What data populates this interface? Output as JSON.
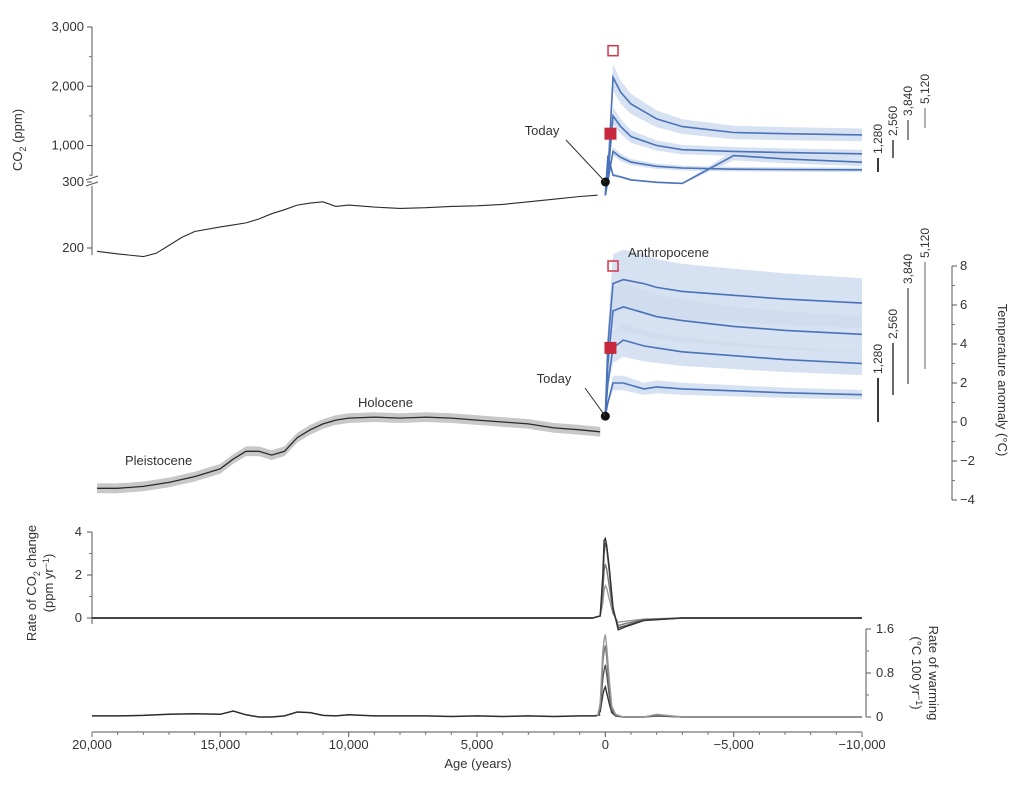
{
  "colors": {
    "observed": "#2b2b2b",
    "observed_band": "#c8c8c8",
    "model_line": "#4a72b8",
    "model_band": "#cfdcef",
    "marker_filled": "#c8283c",
    "marker_open": "#d2354a",
    "scenario_bars": [
      "#3a3a3a",
      "#6a6a6a",
      "#8c8c8c",
      "#b0b0b0"
    ],
    "rate_lines": [
      "#333333",
      "#555555",
      "#777777",
      "#999999"
    ]
  },
  "x_axis": {
    "label": "Age (years)",
    "ticks": [
      20000,
      15000,
      10000,
      5000,
      0,
      -5000,
      -10000
    ],
    "tick_labels": [
      "20,000",
      "15,000",
      "10,000",
      "5,000",
      "0",
      "−5,000",
      "−10,000"
    ],
    "range": [
      20000,
      -10000
    ]
  },
  "chart_data": [
    {
      "type": "line",
      "panel": "co2",
      "ylabel_parts": [
        "CO",
        "2",
        " (ppm)"
      ],
      "y_ticks_upper": [
        1000,
        2000,
        3000
      ],
      "y_tick_labels_upper": [
        "1,000",
        "2,000",
        "3,000"
      ],
      "y_ticks_lower": [
        200,
        300
      ],
      "y_tick_labels_lower": [
        "200",
        "300"
      ],
      "scale": "broken axis (300 ppm break)",
      "scenario_labels": [
        "1,280",
        "2,560",
        "3,840",
        "5,120"
      ],
      "annotations": [
        "Today"
      ],
      "observed": {
        "x": [
          19800,
          19000,
          18000,
          17500,
          17000,
          16500,
          16000,
          15000,
          14500,
          14000,
          13500,
          13000,
          12500,
          12000,
          11500,
          11000,
          10500,
          10000,
          9000,
          8000,
          7000,
          6000,
          5000,
          4000,
          3000,
          2000,
          1000,
          300
        ],
        "y": [
          195,
          191,
          187,
          192,
          204,
          216,
          225,
          232,
          235,
          238,
          244,
          252,
          258,
          265,
          268,
          270,
          263,
          265,
          262,
          260,
          261,
          263,
          264,
          266,
          270,
          274,
          278,
          280
        ]
      },
      "scenarios": [
        {
          "name": "1,280",
          "x": [
            0,
            -100,
            -300,
            -600,
            -1000,
            -2000,
            -3000,
            -5000,
            -7000,
            -10000
          ],
          "y": [
            280,
            340,
            500,
            470,
            420,
            380,
            360,
            340,
            335,
            330
          ]
        },
        {
          "name": "2,560",
          "x": [
            0,
            -100,
            -300,
            -600,
            -1000,
            -2000,
            -3000,
            -5000,
            -7000,
            -10000
          ],
          "y": [
            280,
            400,
            900,
            800,
            720,
            650,
            620,
            600,
            595,
            590
          ]
        },
        {
          "name": "3,840",
          "x": [
            0,
            -100,
            -300,
            -600,
            -1000,
            -2000,
            -3000,
            -5000,
            -7000,
            -10000
          ],
          "y": [
            280,
            450,
            1500,
            1320,
            1150,
            1000,
            930,
            900,
            880,
            860
          ]
        },
        {
          "name": "5,120",
          "x": [
            0,
            -100,
            -300,
            -600,
            -1000,
            -2000,
            -3000,
            -5000,
            -7000,
            -10000
          ],
          "y": [
            280,
            500,
            2150,
            1900,
            1700,
            1450,
            1320,
            1220,
            1200,
            1180
          ]
        }
      ],
      "markers": [
        {
          "label": "Today",
          "x": 0,
          "y": 300,
          "style": "filled-circle"
        },
        {
          "x": -200,
          "y": 1200,
          "style": "filled-square"
        },
        {
          "x": -300,
          "y": 2600,
          "style": "open-square"
        }
      ]
    },
    {
      "type": "line",
      "panel": "temperature",
      "ylabel": "Temperature anomaly (°C)",
      "y_ticks": [
        -4,
        -2,
        0,
        2,
        4,
        6,
        8
      ],
      "y_tick_labels": [
        "−4",
        "−2",
        "0",
        "2",
        "4",
        "6",
        "8"
      ],
      "ylim": [
        -4,
        8
      ],
      "scenario_labels": [
        "1,280",
        "2,560",
        "3,840",
        "5,120"
      ],
      "annotations": [
        "Pleistocene",
        "Holocene",
        "Today",
        "Anthropocene"
      ],
      "observed": {
        "x": [
          19800,
          19000,
          18000,
          17000,
          16000,
          15500,
          15000,
          14500,
          14000,
          13500,
          13000,
          12500,
          12000,
          11500,
          11000,
          10500,
          10000,
          9000,
          8000,
          7000,
          6000,
          5000,
          4000,
          3000,
          2000,
          1000,
          200
        ],
        "y": [
          -3.4,
          -3.4,
          -3.3,
          -3.1,
          -2.8,
          -2.6,
          -2.4,
          -1.9,
          -1.5,
          -1.5,
          -1.7,
          -1.5,
          -0.8,
          -0.4,
          -0.1,
          0.1,
          0.2,
          0.25,
          0.2,
          0.25,
          0.2,
          0.1,
          0.0,
          -0.1,
          -0.3,
          -0.4,
          -0.5
        ]
      },
      "scenarios": [
        {
          "name": "1,280",
          "x": [
            0,
            -100,
            -300,
            -700,
            -1500,
            -2000,
            -3000,
            -5000,
            -7000,
            -10000
          ],
          "y": [
            0.3,
            1.0,
            2.0,
            2.0,
            1.7,
            1.8,
            1.7,
            1.6,
            1.5,
            1.4
          ]
        },
        {
          "name": "2,560",
          "x": [
            0,
            -100,
            -300,
            -700,
            -1500,
            -2000,
            -3000,
            -5000,
            -7000,
            -10000
          ],
          "y": [
            0.3,
            2.0,
            3.8,
            4.2,
            3.9,
            3.8,
            3.6,
            3.4,
            3.2,
            3.0
          ]
        },
        {
          "name": "3,840",
          "x": [
            0,
            -100,
            -300,
            -700,
            -1500,
            -2000,
            -3000,
            -5000,
            -7000,
            -10000
          ],
          "y": [
            0.3,
            3.0,
            5.7,
            5.9,
            5.6,
            5.4,
            5.2,
            4.9,
            4.7,
            4.5
          ]
        },
        {
          "name": "5,120",
          "x": [
            0,
            -100,
            -300,
            -700,
            -1500,
            -2000,
            -3000,
            -5000,
            -7000,
            -10000
          ],
          "y": [
            0.3,
            4.0,
            7.1,
            7.3,
            7.1,
            6.9,
            6.7,
            6.5,
            6.3,
            6.1
          ]
        }
      ],
      "markers": [
        {
          "label": "Today",
          "x": 0,
          "y": 0.3,
          "style": "filled-circle"
        },
        {
          "x": -200,
          "y": 3.8,
          "style": "filled-square"
        },
        {
          "x": -300,
          "y": 8.0,
          "style": "open-square"
        }
      ]
    },
    {
      "type": "line",
      "panel": "co2_rate",
      "ylabel_parts": [
        "Rate of CO",
        "2",
        " change"
      ],
      "ylabel_line2_parts": [
        "(ppm yr",
        "−1",
        ")"
      ],
      "y_ticks": [
        0,
        2,
        4
      ],
      "y_tick_labels": [
        "0",
        "2",
        "4"
      ],
      "ylim": [
        -0.3,
        4
      ],
      "series": [
        {
          "name": "1,280",
          "x": [
            20000,
            500,
            200,
            100,
            50,
            0,
            -50,
            -150,
            -300,
            -500,
            -800,
            -1500,
            -3000,
            -10000
          ],
          "y": [
            0,
            0,
            0.1,
            0.7,
            1.3,
            1.5,
            1.4,
            0.9,
            0.2,
            -0.2,
            -0.15,
            -0.05,
            0,
            0
          ]
        },
        {
          "name": "2,560",
          "x": [
            20000,
            500,
            200,
            100,
            50,
            0,
            -50,
            -150,
            -300,
            -500,
            -800,
            -1500,
            -3000,
            -10000
          ],
          "y": [
            0,
            0,
            0.1,
            1.2,
            2.2,
            2.5,
            2.3,
            1.5,
            0.3,
            -0.35,
            -0.25,
            -0.08,
            0,
            0
          ]
        },
        {
          "name": "3,840",
          "x": [
            20000,
            500,
            200,
            100,
            50,
            0,
            -50,
            -150,
            -300,
            -500,
            -800,
            -1500,
            -3000,
            -10000
          ],
          "y": [
            0,
            0,
            0.1,
            1.6,
            3.0,
            3.5,
            3.3,
            2.2,
            0.4,
            -0.45,
            -0.35,
            -0.1,
            0,
            0
          ]
        },
        {
          "name": "5,120",
          "x": [
            20000,
            500,
            200,
            100,
            50,
            0,
            -50,
            -150,
            -300,
            -500,
            -800,
            -1500,
            -3000,
            -10000
          ],
          "y": [
            0,
            0,
            0.1,
            2.0,
            3.6,
            3.7,
            3.4,
            2.4,
            0.5,
            -0.55,
            -0.4,
            -0.12,
            0,
            0
          ]
        }
      ]
    },
    {
      "type": "line",
      "panel": "warming_rate",
      "ylabel": "Rate of warming",
      "ylabel_line2_parts": [
        "(°C 100 yr",
        "−1",
        ")"
      ],
      "y_ticks": [
        0,
        0.8,
        1.6
      ],
      "y_tick_labels": [
        "0",
        "0.8",
        "1.6"
      ],
      "ylim": [
        0,
        1.6
      ],
      "observed": {
        "x": [
          20000,
          19000,
          18000,
          17000,
          16000,
          15000,
          14500,
          14000,
          13500,
          13000,
          12500,
          12000,
          11500,
          11000,
          10500,
          10000,
          9000,
          8000,
          7000,
          6000,
          5000,
          4000,
          3000,
          2000,
          1000,
          400,
          200
        ],
        "y": [
          0.02,
          0.02,
          0.03,
          0.05,
          0.06,
          0.05,
          0.11,
          0.04,
          0.0,
          0.0,
          0.02,
          0.09,
          0.08,
          0.03,
          0.02,
          0.04,
          0.02,
          0.02,
          0.02,
          0.01,
          0.02,
          0.01,
          0.02,
          0.01,
          0.02,
          0.02,
          0.04
        ]
      },
      "series": [
        {
          "name": "1,280",
          "x": [
            300,
            200,
            100,
            50,
            0,
            -50,
            -150,
            -250,
            -400,
            -700,
            -1500,
            -2000,
            -3000,
            -10000
          ],
          "y": [
            0.02,
            0.1,
            0.4,
            0.5,
            0.55,
            0.45,
            0.25,
            0.08,
            0.02,
            0.0,
            0.0,
            0.02,
            0.0,
            0.0
          ]
        },
        {
          "name": "2,560",
          "x": [
            300,
            200,
            100,
            50,
            0,
            -50,
            -150,
            -250,
            -400,
            -700,
            -1500,
            -2000,
            -3000,
            -10000
          ],
          "y": [
            0.02,
            0.15,
            0.7,
            0.85,
            0.95,
            0.8,
            0.4,
            0.12,
            0.03,
            0.0,
            0.0,
            0.03,
            0.0,
            0.0
          ]
        },
        {
          "name": "3,840",
          "x": [
            300,
            200,
            100,
            50,
            0,
            -50,
            -150,
            -250,
            -400,
            -700,
            -1500,
            -2000,
            -3000,
            -10000
          ],
          "y": [
            0.02,
            0.2,
            1.0,
            1.2,
            1.3,
            1.1,
            0.55,
            0.15,
            0.04,
            0.0,
            0.0,
            0.04,
            0.0,
            0.0
          ]
        },
        {
          "name": "5,120",
          "x": [
            300,
            200,
            100,
            50,
            0,
            -50,
            -150,
            -250,
            -400,
            -700,
            -1500,
            -2000,
            -3000,
            -10000
          ],
          "y": [
            0.02,
            0.25,
            1.2,
            1.4,
            1.5,
            1.3,
            0.7,
            0.2,
            0.05,
            0.0,
            0.0,
            0.05,
            0.0,
            0.0
          ]
        }
      ]
    }
  ]
}
